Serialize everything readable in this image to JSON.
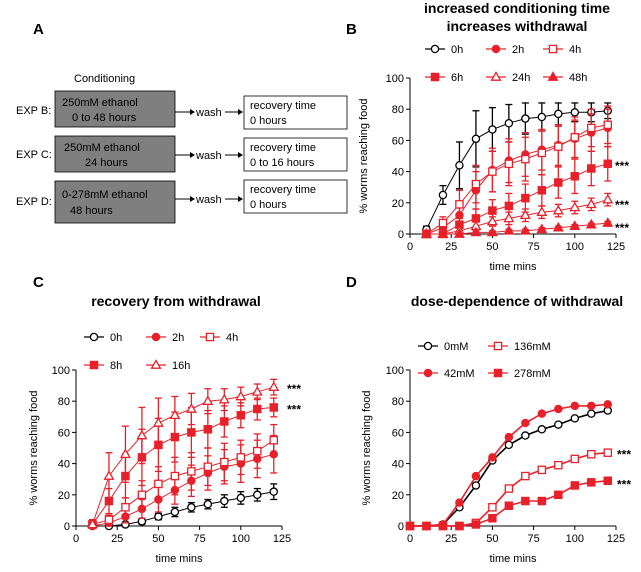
{
  "panel_labels": {
    "a": "A",
    "b": "B",
    "c": "C",
    "d": "D"
  },
  "schematic": {
    "header": "Conditioning",
    "wash": "wash",
    "rows": [
      {
        "exp": "EXP B:",
        "cond1": "250mM ethanol",
        "cond2": "0 to 48 hours",
        "rec1": "recovery time",
        "rec2": "0 hours"
      },
      {
        "exp": "EXP C:",
        "cond1": "250mM  ethanol",
        "cond2": "24 hours",
        "rec1": "recovery time",
        "rec2": "0 to 16 hours"
      },
      {
        "exp": "EXP D:",
        "cond1": "0-278mM  ethanol",
        "cond2": "48 hours",
        "rec1": "recovery time",
        "rec2": "0 hours"
      }
    ]
  },
  "colors": {
    "black": "#000000",
    "red": "#e8202a",
    "box_fill": "#7f7f7f"
  },
  "chart_data": [
    {
      "id": "B",
      "type": "line",
      "title": "increased conditioning time increases withdrawal",
      "title_lines": [
        "increased conditioning time",
        "increases withdrawal"
      ],
      "xlabel": "time mins",
      "ylabel": "% worms reaching food",
      "xlim": [
        0,
        125
      ],
      "ylim": [
        0,
        100
      ],
      "xticks": [
        0,
        25,
        50,
        75,
        100,
        125
      ],
      "yticks": [
        0,
        20,
        40,
        60,
        80,
        100
      ],
      "x": [
        10,
        20,
        30,
        40,
        50,
        60,
        70,
        80,
        90,
        100,
        110,
        120
      ],
      "series": [
        {
          "name": "0h",
          "color": "#000000",
          "marker": "circle-open",
          "values": [
            3,
            25,
            44,
            61,
            67,
            71,
            74,
            75,
            77,
            78,
            78,
            79
          ],
          "err": [
            2,
            6,
            15,
            18,
            14,
            12,
            10,
            9,
            7,
            6,
            6,
            5
          ]
        },
        {
          "name": "2h",
          "color": "#e8202a",
          "marker": "circle-filled",
          "values": [
            0,
            4,
            12,
            28,
            41,
            47,
            51,
            54,
            57,
            61,
            65,
            68
          ],
          "err": [
            1,
            3,
            8,
            12,
            14,
            14,
            14,
            13,
            13,
            12,
            12,
            12
          ]
        },
        {
          "name": "4h",
          "color": "#e8202a",
          "marker": "square-open",
          "values": [
            0,
            7,
            19,
            32,
            40,
            45,
            48,
            52,
            56,
            62,
            68,
            70
          ],
          "err": [
            1,
            4,
            9,
            12,
            13,
            14,
            14,
            14,
            13,
            13,
            12,
            12
          ]
        },
        {
          "name": "6h",
          "color": "#e8202a",
          "marker": "square-filled",
          "values": [
            0,
            0,
            6,
            10,
            15,
            18,
            23,
            28,
            33,
            37,
            42,
            45
          ],
          "err": [
            0,
            1,
            4,
            6,
            7,
            8,
            9,
            10,
            10,
            11,
            11,
            11
          ]
        },
        {
          "name": "24h",
          "color": "#e8202a",
          "marker": "triangle-open",
          "values": [
            0,
            0,
            2,
            5,
            8,
            10,
            12,
            14,
            15,
            17,
            19,
            22
          ],
          "err": [
            0,
            0,
            2,
            3,
            3,
            4,
            4,
            4,
            4,
            4,
            4,
            4
          ]
        },
        {
          "name": "48h",
          "color": "#e8202a",
          "marker": "triangle-filled",
          "values": [
            0,
            0,
            0,
            1,
            1,
            2,
            2,
            3,
            4,
            5,
            6,
            7
          ],
          "err": [
            0,
            0,
            0,
            1,
            1,
            1,
            1,
            1,
            1,
            1,
            1,
            1
          ]
        }
      ],
      "legend_rows": [
        [
          "0h",
          "2h",
          "4h"
        ],
        [
          "6h",
          "24h",
          "48h"
        ]
      ],
      "annotations": [
        {
          "text": "***",
          "y": 45
        },
        {
          "text": "***",
          "y": 20
        },
        {
          "text": "***",
          "y": 5
        }
      ]
    },
    {
      "id": "C",
      "type": "line",
      "title": "recovery from withdrawal",
      "title_lines": [
        "recovery from withdrawal"
      ],
      "xlabel": "time mins",
      "ylabel": "% worms reaching food",
      "xlim": [
        0,
        125
      ],
      "ylim": [
        0,
        100
      ],
      "xticks": [
        0,
        25,
        50,
        75,
        100,
        125
      ],
      "yticks": [
        0,
        20,
        40,
        60,
        80,
        100
      ],
      "x": [
        10,
        20,
        30,
        40,
        50,
        60,
        70,
        80,
        90,
        100,
        110,
        120
      ],
      "series": [
        {
          "name": "0h",
          "color": "#000000",
          "marker": "circle-open",
          "values": [
            0,
            0,
            1,
            3,
            6,
            9,
            12,
            14,
            16,
            18,
            20,
            22
          ],
          "err": [
            0,
            0,
            1,
            2,
            2,
            3,
            3,
            3,
            4,
            4,
            4,
            5
          ]
        },
        {
          "name": "2h",
          "color": "#e8202a",
          "marker": "circle-filled",
          "values": [
            0,
            2,
            6,
            11,
            17,
            23,
            29,
            34,
            38,
            40,
            43,
            46
          ],
          "err": [
            1,
            2,
            4,
            6,
            8,
            9,
            10,
            11,
            11,
            12,
            12,
            12
          ]
        },
        {
          "name": "4h",
          "color": "#e8202a",
          "marker": "square-open",
          "values": [
            1,
            4,
            12,
            20,
            27,
            32,
            35,
            38,
            41,
            44,
            48,
            55
          ],
          "err": [
            1,
            3,
            6,
            9,
            11,
            12,
            12,
            12,
            12,
            11,
            11,
            10
          ]
        },
        {
          "name": "8h",
          "color": "#e8202a",
          "marker": "square-filled",
          "values": [
            1,
            16,
            32,
            44,
            52,
            57,
            60,
            62,
            67,
            71,
            75,
            76
          ],
          "err": [
            3,
            8,
            14,
            18,
            17,
            16,
            16,
            12,
            10,
            8,
            7,
            6
          ]
        },
        {
          "name": "16h",
          "color": "#e8202a",
          "marker": "triangle-open",
          "values": [
            1,
            32,
            46,
            58,
            66,
            71,
            75,
            80,
            81,
            83,
            86,
            89
          ],
          "err": [
            3,
            15,
            18,
            18,
            16,
            12,
            10,
            8,
            7,
            6,
            5,
            5
          ]
        }
      ],
      "legend_rows": [
        [
          "0h",
          "2h",
          "4h"
        ],
        [
          "8h",
          "16h"
        ]
      ],
      "annotations": [
        {
          "text": "***",
          "y": 89
        },
        {
          "text": "***",
          "y": 76
        }
      ]
    },
    {
      "id": "D",
      "type": "line",
      "title": "dose-dependence of withdrawal",
      "title_lines": [
        "dose-dependence of withdrawal"
      ],
      "xlabel": "time mins",
      "ylabel": "% worms reaching food",
      "xlim": [
        0,
        125
      ],
      "ylim": [
        0,
        100
      ],
      "xticks": [
        0,
        25,
        50,
        75,
        100,
        125
      ],
      "yticks": [
        0,
        20,
        40,
        60,
        80,
        100
      ],
      "x": [
        0,
        10,
        20,
        30,
        40,
        50,
        60,
        70,
        80,
        90,
        100,
        110,
        120
      ],
      "series": [
        {
          "name": "0mM",
          "color": "#000000",
          "marker": "circle-open",
          "values": [
            0,
            0,
            1,
            12,
            26,
            42,
            52,
            58,
            62,
            65,
            69,
            72,
            74
          ],
          "err": []
        },
        {
          "name": "136mM",
          "color": "#e8202a",
          "marker": "square-open",
          "values": [
            0,
            0,
            0,
            0,
            2,
            12,
            24,
            32,
            36,
            39,
            43,
            46,
            47
          ],
          "err": []
        },
        {
          "name": "42mM",
          "color": "#e8202a",
          "marker": "circle-filled",
          "values": [
            0,
            0,
            1,
            15,
            32,
            44,
            57,
            66,
            72,
            75,
            77,
            77,
            78
          ],
          "err": []
        },
        {
          "name": "278mM",
          "color": "#e8202a",
          "marker": "square-filled",
          "values": [
            0,
            0,
            0,
            0,
            1,
            5,
            13,
            16,
            16,
            20,
            26,
            28,
            29
          ],
          "err": []
        }
      ],
      "legend_rows": [
        [
          "0mM",
          "136mM"
        ],
        [
          "42mM",
          "278mM"
        ]
      ],
      "annotations": [
        {
          "text": "***",
          "y": 47
        },
        {
          "text": "***",
          "y": 28
        }
      ]
    }
  ]
}
